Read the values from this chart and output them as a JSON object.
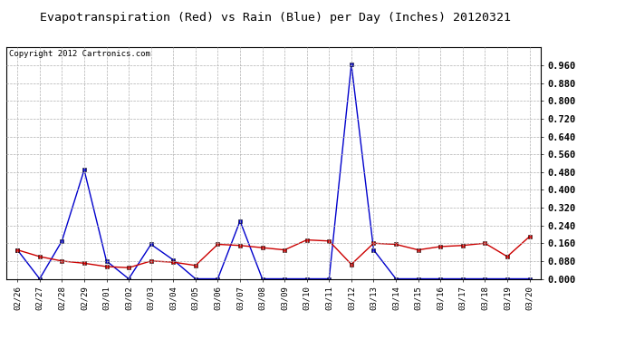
{
  "title": "Evapotranspiration (Red) vs Rain (Blue) per Day (Inches) 20120321",
  "copyright": "Copyright 2012 Cartronics.com",
  "labels": [
    "02/26",
    "02/27",
    "02/28",
    "02/29",
    "03/01",
    "03/02",
    "03/03",
    "03/04",
    "03/05",
    "03/06",
    "03/07",
    "03/08",
    "03/09",
    "03/10",
    "03/11",
    "03/12",
    "03/13",
    "03/14",
    "03/15",
    "03/16",
    "03/17",
    "03/18",
    "03/19",
    "03/20"
  ],
  "red_data": [
    0.13,
    0.1,
    0.08,
    0.07,
    0.055,
    0.05,
    0.08,
    0.075,
    0.06,
    0.155,
    0.15,
    0.14,
    0.13,
    0.175,
    0.17,
    0.065,
    0.16,
    0.155,
    0.13,
    0.145,
    0.15,
    0.16,
    0.1,
    0.19
  ],
  "blue_data": [
    0.13,
    0.0,
    0.17,
    0.49,
    0.08,
    0.0,
    0.155,
    0.085,
    0.0,
    0.0,
    0.26,
    0.0,
    0.0,
    0.0,
    0.0,
    0.965,
    0.13,
    0.0,
    0.0,
    0.0,
    0.0,
    0.0,
    0.0,
    0.0
  ],
  "ylim": [
    0.0,
    1.04
  ],
  "yticks": [
    0.0,
    0.08,
    0.16,
    0.24,
    0.32,
    0.4,
    0.48,
    0.56,
    0.64,
    0.72,
    0.8,
    0.88,
    0.96
  ],
  "red_color": "#cc0000",
  "blue_color": "#0000cc",
  "bg_color": "#ffffff",
  "grid_color": "#b0b0b0",
  "title_fontsize": 9.5,
  "copyright_fontsize": 6.5,
  "tick_fontsize": 6.5,
  "ytick_fontsize": 7.5
}
